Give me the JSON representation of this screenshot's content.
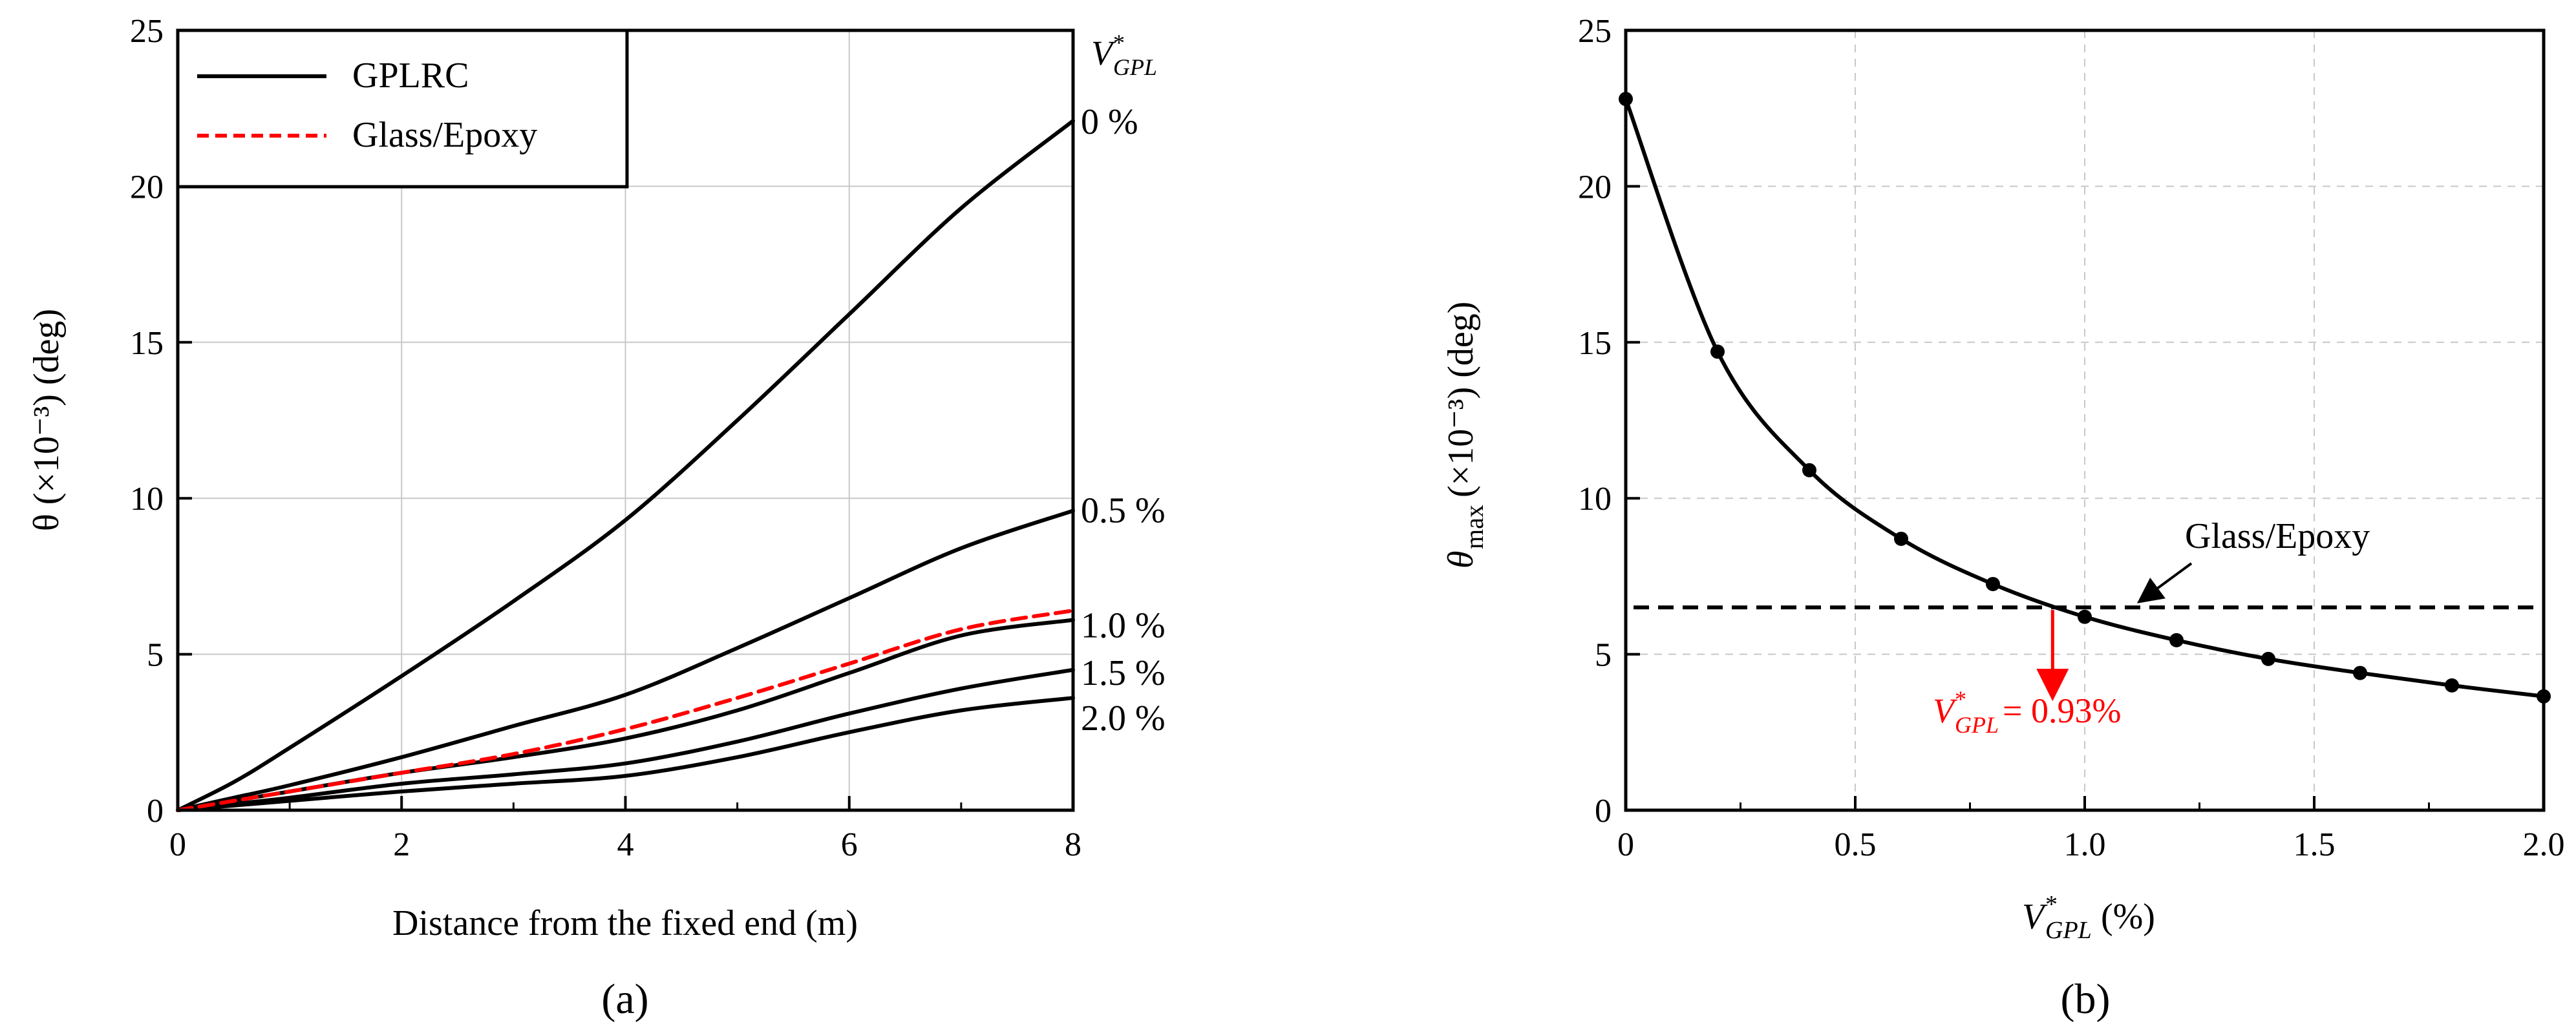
{
  "chart_data": [
    {
      "panel": "a",
      "panel_label": "(a)",
      "type": "line",
      "xlabel": "Distance from the fixed end (m)",
      "ylabel": "θ (×10⁻³) (deg)",
      "xlim": [
        0,
        8
      ],
      "ylim": [
        0,
        25
      ],
      "xticks": [
        "0",
        "2",
        "4",
        "6",
        "8"
      ],
      "yticks": [
        "0",
        "5",
        "10",
        "15",
        "20",
        "25"
      ],
      "legend": [
        {
          "label": "GPLRC",
          "color": "#000000",
          "style": "solid"
        },
        {
          "label": "Glass/Epoxy",
          "color": "#ff0000",
          "style": "dashed"
        }
      ],
      "curve_header": "V*GPL",
      "x": [
        0,
        0.5,
        1,
        2,
        3,
        4,
        5,
        6,
        7,
        8
      ],
      "series": [
        {
          "name": "0 %",
          "label": "0 %",
          "color": "#000000",
          "style": "solid",
          "values": [
            0,
            0.9,
            2.0,
            4.3,
            6.7,
            9.3,
            12.5,
            15.9,
            19.3,
            22.1
          ]
        },
        {
          "name": "0.5 %",
          "label": "0.5 %",
          "color": "#000000",
          "style": "solid",
          "values": [
            0,
            0.4,
            0.8,
            1.7,
            2.7,
            3.7,
            5.2,
            6.8,
            8.4,
            9.6
          ]
        },
        {
          "name": "1.0 %",
          "label": "1.0 %",
          "color": "#000000",
          "style": "solid",
          "values": [
            0,
            0.3,
            0.6,
            1.2,
            1.7,
            2.3,
            3.2,
            4.4,
            5.6,
            6.1
          ]
        },
        {
          "name": "1.5 %",
          "label": "1.5 %",
          "color": "#000000",
          "style": "solid",
          "values": [
            0,
            0.2,
            0.4,
            0.85,
            1.15,
            1.5,
            2.2,
            3.1,
            3.9,
            4.5
          ]
        },
        {
          "name": "2.0 %",
          "label": "2.0 %",
          "color": "#000000",
          "style": "solid",
          "values": [
            0,
            0.15,
            0.3,
            0.6,
            0.85,
            1.1,
            1.7,
            2.5,
            3.2,
            3.6
          ]
        },
        {
          "name": "Glass/Epoxy",
          "label": "",
          "color": "#ff0000",
          "style": "dashed",
          "values": [
            0,
            0.3,
            0.6,
            1.2,
            1.8,
            2.6,
            3.6,
            4.7,
            5.8,
            6.4
          ]
        }
      ]
    },
    {
      "panel": "b",
      "panel_label": "(b)",
      "type": "line",
      "xlabel": "V*GPL (%)",
      "ylabel": "θmax (×10⁻³) (deg)",
      "xlim": [
        0,
        2.0
      ],
      "ylim": [
        0,
        25
      ],
      "xticks": [
        "0",
        "0.5",
        "1.0",
        "1.5",
        "2.0"
      ],
      "yticks": [
        "0",
        "5",
        "10",
        "15",
        "20",
        "25"
      ],
      "series": [
        {
          "name": "GPLRC",
          "color": "#000000",
          "style": "solid-markers",
          "x": [
            0,
            0.2,
            0.4,
            0.6,
            0.8,
            1.0,
            1.2,
            1.4,
            1.6,
            1.8,
            2.0
          ],
          "values": [
            22.8,
            14.7,
            10.9,
            8.7,
            7.25,
            6.2,
            5.45,
            4.85,
            4.4,
            4.0,
            3.65
          ]
        }
      ],
      "reference_line": {
        "label": "Glass/Epoxy",
        "value": 6.5,
        "color": "#000000",
        "style": "dashed"
      },
      "annotation": {
        "text_prefix": "V*GPL",
        "text_value": "= 0.93%",
        "x": 0.93,
        "color": "#ff0000"
      }
    }
  ]
}
